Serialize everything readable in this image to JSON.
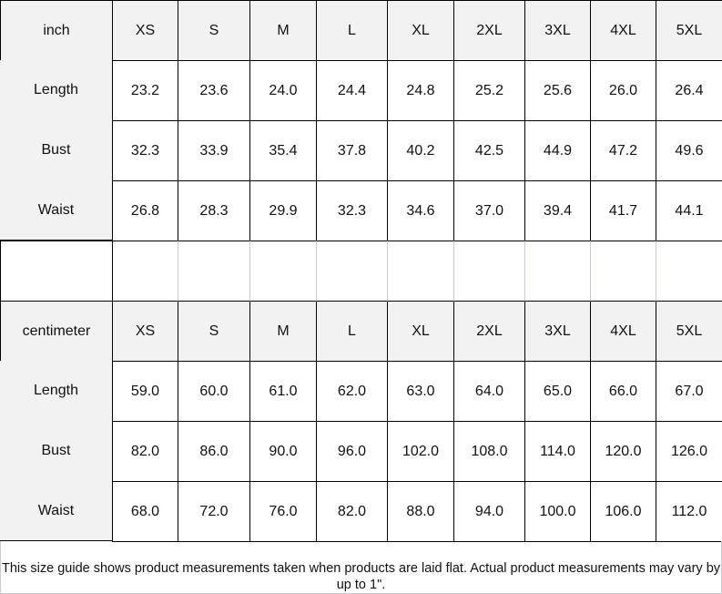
{
  "sizes": [
    "XS",
    "S",
    "M",
    "L",
    "XL",
    "2XL",
    "3XL",
    "4XL",
    "5XL"
  ],
  "tables": [
    {
      "unit": "inch",
      "rows": [
        {
          "label": "Length",
          "values": [
            "23.2",
            "23.6",
            "24.0",
            "24.4",
            "24.8",
            "25.2",
            "25.6",
            "26.0",
            "26.4"
          ]
        },
        {
          "label": "Bust",
          "values": [
            "32.3",
            "33.9",
            "35.4",
            "37.8",
            "40.2",
            "42.5",
            "44.9",
            "47.2",
            "49.6"
          ]
        },
        {
          "label": "Waist",
          "values": [
            "26.8",
            "28.3",
            "29.9",
            "32.3",
            "34.6",
            "37.0",
            "39.4",
            "41.7",
            "44.1"
          ]
        }
      ]
    },
    {
      "unit": "centimeter",
      "rows": [
        {
          "label": "Length",
          "values": [
            "59.0",
            "60.0",
            "61.0",
            "62.0",
            "63.0",
            "64.0",
            "65.0",
            "66.0",
            "67.0"
          ]
        },
        {
          "label": "Bust",
          "values": [
            "82.0",
            "86.0",
            "90.0",
            "96.0",
            "102.0",
            "108.0",
            "114.0",
            "120.0",
            "126.0"
          ]
        },
        {
          "label": "Waist",
          "values": [
            "68.0",
            "72.0",
            "76.0",
            "82.0",
            "88.0",
            "94.0",
            "100.0",
            "106.0",
            "112.0"
          ]
        }
      ]
    }
  ],
  "footnote": "This size guide shows product measurements taken when products are laid flat. Actual product measurements may vary by up to 1\"."
}
